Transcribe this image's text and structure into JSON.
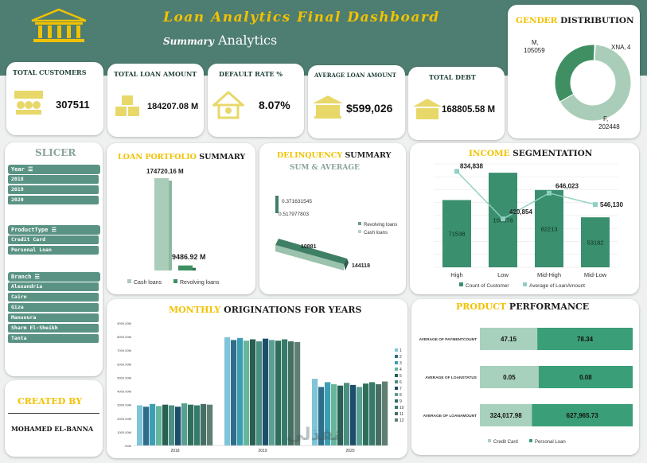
{
  "header": {
    "title": "Loan Analytics Final Dashboard",
    "subtitle_bold": "Summary",
    "subtitle_rest": "Analytics"
  },
  "kpis": [
    {
      "label": "Total Customers",
      "value": "307511",
      "icon": "customers-icon"
    },
    {
      "label": "Total Loan Amount",
      "value": "184207.08 M",
      "icon": "money-stack-icon"
    },
    {
      "label": "Default Rate %",
      "value": "8.07%",
      "icon": "house-icon"
    },
    {
      "label": "Average Loan Amount",
      "value": "$599,026",
      "icon": "bank-icon"
    },
    {
      "label": "Total Debt",
      "value": "168805.58 M",
      "icon": "debt-icon"
    }
  ],
  "gender": {
    "title_gold": "Gender",
    "title_rest": "Distribution",
    "segments": [
      {
        "label": "M,",
        "value_label": "105059",
        "value": 105059,
        "color": "#3f8f62"
      },
      {
        "label": "XNA,",
        "value_label": "4",
        "value": 4,
        "color": "#2c5e4a"
      },
      {
        "label": "F,",
        "value_label": "202448",
        "value": 202448,
        "color": "#a9cdb8"
      }
    ]
  },
  "slicer": {
    "title": "Slicer",
    "groups": [
      {
        "name": "Year",
        "items": [
          "2018",
          "2019",
          "2020"
        ]
      },
      {
        "name": "ProductType",
        "items": [
          "Credit Card",
          "Personal Loan"
        ]
      },
      {
        "name": "Branch",
        "items": [
          "Alexandria",
          "Cairo",
          "Giza",
          "Mansoura",
          "Sharm El-Sheikh",
          "Tanta"
        ]
      }
    ]
  },
  "created_by": {
    "label": "Created By",
    "name": "Mohamed El-Banna"
  },
  "watermark": "نفذلي",
  "chart_data": [
    {
      "type": "bar",
      "title_gold": "Loan Portfolio",
      "title_rest": "Summary",
      "categories": [
        "Cash loans",
        "Revolving loans"
      ],
      "values": [
        174720.16,
        9486.92
      ],
      "data_labels": [
        "174720.16 M",
        "9486.92 M"
      ],
      "colors": [
        "#a9cdb8",
        "#3f8f62"
      ],
      "legend": "bottom"
    },
    {
      "type": "bar",
      "title_gold": "Delinquency",
      "title_rest": "Summary",
      "subtitle": "Sum & Average",
      "series": [
        {
          "name": "Revolving loans",
          "values": [
            0.371631545,
            10881
          ]
        },
        {
          "name": "Cash loans",
          "values": [
            0.517977803,
            144118
          ]
        }
      ],
      "data_labels": [
        "0.371631545",
        "0.517977803",
        "10881",
        "144118"
      ],
      "legend": "right"
    },
    {
      "type": "bar",
      "title_gold": "Income",
      "title_rest": "Segmentation",
      "categories": [
        "High",
        "Low",
        "Mid-High",
        "Mid-Low"
      ],
      "series": [
        {
          "name": "Count of Customer",
          "values": [
            71538,
            100578,
            82213,
            53182
          ]
        },
        {
          "name": "Average of LoanAmount",
          "values": [
            834838,
            420854,
            646023,
            546130
          ],
          "type": "line"
        }
      ],
      "bar_labels": [
        "71538",
        "100578",
        "82213",
        "53182"
      ],
      "line_labels": [
        "834,838",
        "420,854",
        "646,023",
        "546,130"
      ],
      "legend": "bottom"
    },
    {
      "type": "bar",
      "title_gold": "Monthly",
      "title_rest": "Originations for Years",
      "categories": [
        "2018",
        "2019",
        "2020"
      ],
      "months": [
        "1",
        "2",
        "3",
        "4",
        "5",
        "6",
        "7",
        "8",
        "9",
        "10",
        "11",
        "12"
      ],
      "y_ticks": [
        ".00M",
        "1000.00M",
        "2000.00M",
        "3000.00M",
        "4000.00M",
        "5000.00M",
        "6000.00M",
        "7000.00M",
        "8000.00M",
        "9000.00M"
      ],
      "ylim": [
        0,
        9000
      ],
      "series_2018": [
        2950,
        2850,
        3050,
        2900,
        3000,
        2950,
        2850,
        3100,
        3000,
        2950,
        3050,
        3000
      ],
      "series_2019": [
        7950,
        7750,
        7900,
        7700,
        7800,
        7650,
        7850,
        7750,
        7700,
        7800,
        7650,
        7600
      ],
      "series_2020": [
        4900,
        4300,
        4650,
        4500,
        4400,
        4600,
        4450,
        4300,
        4550,
        4650,
        4500,
        4700
      ],
      "colors": [
        "#7fc4d8",
        "#2f6e8a",
        "#3a9fb3",
        "#67b59b",
        "#2a5f53",
        "#4a8f82",
        "#1e4d6b",
        "#5a9f94",
        "#2f6f5a",
        "#357a6b",
        "#466f64",
        "#5f7f73"
      ],
      "legend": "right"
    },
    {
      "type": "bar",
      "title_gold": "Product",
      "title_rest": "Performance",
      "categories": [
        "AVERAGE OF PAYMENTCOUNT",
        "AVERAGE OF LOANSTATUS",
        "AVERAGE OF LOANAMOUNT"
      ],
      "series": [
        {
          "name": "Credit Card",
          "values": [
            47.15,
            0.05,
            324017.98
          ],
          "labels": [
            "47.15",
            "0.05",
            "324,017.98"
          ]
        },
        {
          "name": "Personal Loan",
          "values": [
            78.34,
            0.08,
            627965.73
          ],
          "labels": [
            "78.34",
            "0.08",
            "627,965.73"
          ]
        }
      ],
      "stacked_percent": true,
      "legend": "bottom"
    }
  ]
}
